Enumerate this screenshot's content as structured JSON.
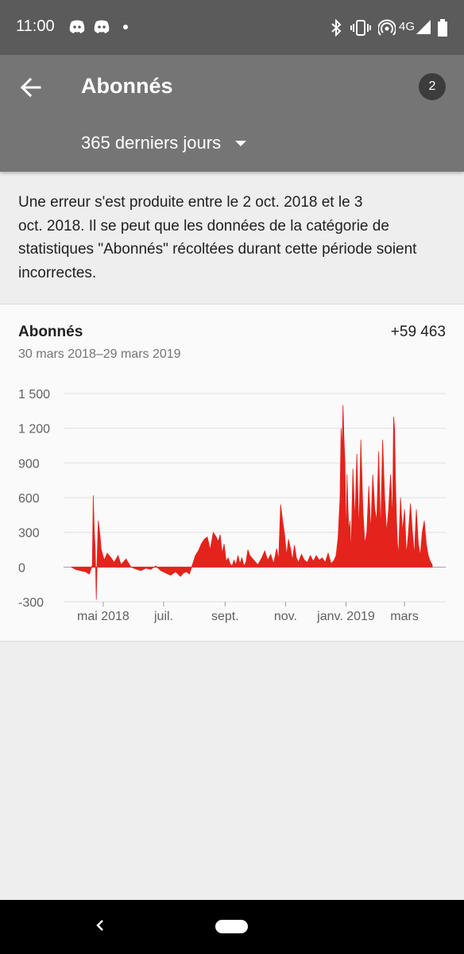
{
  "status": {
    "time": "11:00",
    "network": "4G",
    "icons": [
      "discord-icon",
      "discord-icon",
      "dot-icon",
      "bluetooth-icon",
      "vibrate-icon",
      "hotspot-icon",
      "signal-icon",
      "battery-icon"
    ]
  },
  "header": {
    "title": "Abonnés",
    "badge": "2",
    "period": "365 derniers jours"
  },
  "error": {
    "lines": [
      "Une erreur s'est produite entre le 2 oct. 2018 et le 3",
      "oct. 2018. Il se peut que les données de la catégorie de",
      "statistiques \"Abonnés\" récoltées durant cette période soient",
      "incorrectes."
    ]
  },
  "card": {
    "title": "Abonnés",
    "total": "+59 463",
    "range": "30 mars 2018–29 mars 2019"
  },
  "chart_data": {
    "type": "area",
    "color": "#e4231c",
    "ylim": [
      -300,
      1500
    ],
    "yticks": [
      1500,
      1200,
      900,
      600,
      300,
      0,
      -300
    ],
    "ytick_labels": [
      "1 500",
      "1 200",
      "900",
      "600",
      "300",
      "0",
      "-300"
    ],
    "xticks": [
      {
        "label": "mai 2018",
        "day": 32
      },
      {
        "label": "juil.",
        "day": 93
      },
      {
        "label": "sept.",
        "day": 155
      },
      {
        "label": "nov.",
        "day": 216
      },
      {
        "label": "janv. 2019",
        "day": 277
      },
      {
        "label": "mars",
        "day": 336
      }
    ],
    "series": [
      {
        "x_day": [
          0,
          4,
          9,
          14,
          18,
          21,
          22,
          23,
          24,
          25,
          26,
          27,
          29,
          30,
          33,
          36,
          40,
          43,
          47,
          50,
          55,
          60,
          66,
          70,
          75,
          80,
          85,
          90,
          95,
          100,
          105,
          110,
          113,
          116,
          119,
          122,
          125,
          128,
          131,
          134,
          137,
          140,
          143,
          146,
          148,
          150,
          152,
          154,
          156,
          158,
          160,
          162,
          164,
          166,
          168,
          170,
          172,
          174,
          176,
          178,
          180,
          184,
          188,
          192,
          195,
          198,
          201,
          204,
          207,
          209,
          211,
          213,
          215,
          217,
          219,
          221,
          223,
          225,
          227,
          229,
          232,
          235,
          238,
          241,
          244,
          247,
          250,
          253,
          256,
          259,
          262,
          265,
          267,
          269,
          271,
          272,
          273,
          274,
          275,
          276,
          277,
          278,
          279,
          280,
          281,
          282,
          284,
          286,
          288,
          290,
          292,
          294,
          296,
          298,
          300,
          302,
          304,
          306,
          308,
          310,
          312,
          314,
          316,
          318,
          320,
          322,
          324,
          325,
          326,
          327,
          328,
          329,
          330,
          332,
          334,
          336,
          338,
          340,
          342,
          344,
          346,
          348,
          350,
          352,
          354,
          356,
          358,
          360,
          362,
          364
        ],
        "y": [
          0,
          -20,
          -30,
          -40,
          -60,
          20,
          620,
          300,
          150,
          -280,
          100,
          400,
          250,
          150,
          60,
          120,
          80,
          40,
          100,
          20,
          70,
          0,
          -20,
          -30,
          -10,
          -20,
          10,
          -30,
          -50,
          -70,
          -40,
          -80,
          -50,
          -40,
          -60,
          20,
          100,
          140,
          200,
          240,
          260,
          150,
          300,
          260,
          220,
          280,
          120,
          200,
          50,
          80,
          30,
          10,
          60,
          20,
          100,
          30,
          80,
          10,
          40,
          150,
          100,
          60,
          20,
          80,
          140,
          60,
          110,
          30,
          160,
          60,
          540,
          400,
          280,
          100,
          240,
          160,
          60,
          190,
          80,
          40,
          110,
          60,
          40,
          100,
          50,
          100,
          60,
          80,
          40,
          120,
          30,
          60,
          100,
          250,
          600,
          1200,
          1000,
          1400,
          1100,
          900,
          200,
          800,
          500,
          300,
          400,
          100,
          850,
          400,
          980,
          300,
          1100,
          500,
          200,
          300,
          700,
          300,
          800,
          500,
          400,
          1000,
          300,
          1100,
          600,
          300,
          500,
          800,
          400,
          1300,
          1200,
          700,
          400,
          200,
          100,
          600,
          300,
          500,
          100,
          300,
          550,
          300,
          100,
          500,
          200,
          100,
          300,
          400,
          200,
          100,
          50,
          20
        ]
      }
    ]
  },
  "nav": {
    "back_icon": "back-triangle-icon",
    "home_icon": "home-pill-icon"
  }
}
